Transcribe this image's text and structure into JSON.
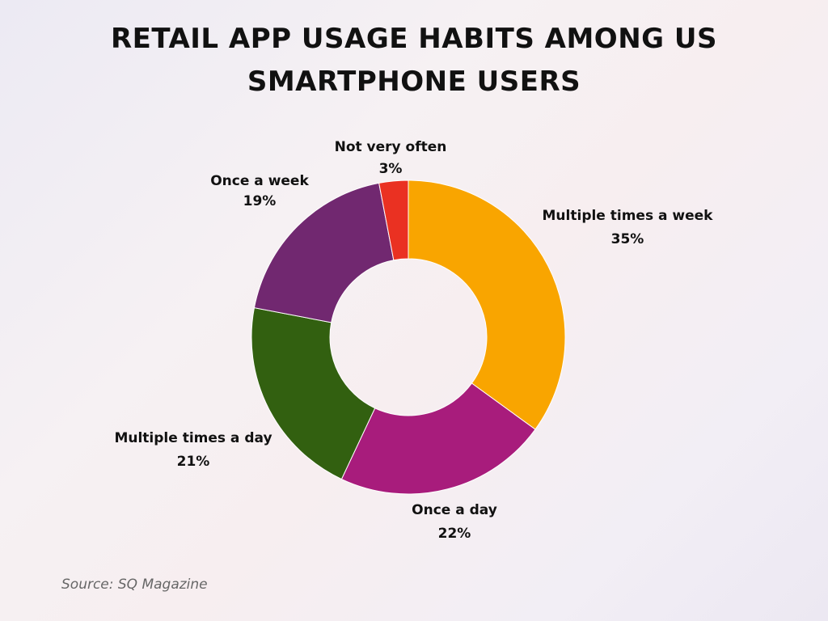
{
  "chart_data": {
    "type": "pie",
    "donut": true,
    "title": "RETAIL APP USAGE HABITS AMONG US SMARTPHONE USERS",
    "title_lines": [
      "RETAIL APP USAGE HABITS AMONG US",
      "SMARTPHONE USERS"
    ],
    "slices": [
      {
        "label": "Multiple times a week",
        "value": 35,
        "display": "35%",
        "color": "#f9a500"
      },
      {
        "label": "Once a day",
        "value": 22,
        "display": "22%",
        "color": "#a81c7c"
      },
      {
        "label": "Multiple times a day",
        "value": 21,
        "display": "21%",
        "color": "#326010"
      },
      {
        "label": "Once a week",
        "value": 19,
        "display": "19%",
        "color": "#712870"
      },
      {
        "label": "Not very often",
        "value": 3,
        "display": "3%",
        "color": "#ea3122"
      }
    ],
    "start_angle": "12 o'clock",
    "direction": "clockwise",
    "source": "Source: SQ Magazine"
  }
}
